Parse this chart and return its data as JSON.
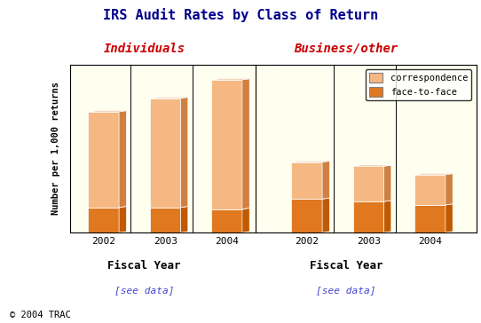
{
  "title": "IRS Audit Rates by Class of Return",
  "title_color": "#00008B",
  "ylabel": "Number per 1,000 returns",
  "xlabel": "Fiscal Year",
  "ylim": [
    0,
    10.0
  ],
  "yticks": [
    0.0,
    2.0,
    4.0,
    6.0,
    8.0,
    10.0
  ],
  "individuals_label": "Individuals",
  "business_label": "Business/other",
  "group_label_color": "#CC0000",
  "years": [
    "2002",
    "2003",
    "2004"
  ],
  "individuals": {
    "correspondence": [
      5.7,
      6.5,
      7.7
    ],
    "face_to_face": [
      1.5,
      1.5,
      1.4
    ]
  },
  "business": {
    "correspondence": [
      2.2,
      2.1,
      1.8
    ],
    "face_to_face": [
      2.0,
      1.85,
      1.65
    ]
  },
  "color_correspondence": "#F5B882",
  "color_face_to_face": "#E07820",
  "color_3d_side": "#C05A00",
  "color_3d_top": "#D06810",
  "background_color": "#FFFFF0",
  "legend_color_corr": "#F5B882",
  "legend_color_f2f": "#E07820",
  "seedata_color": "#4444CC",
  "copyright_text": "© 2004 TRAC",
  "bar_width": 0.5,
  "bar_depth": 0.12,
  "bar_edge_color": "white"
}
